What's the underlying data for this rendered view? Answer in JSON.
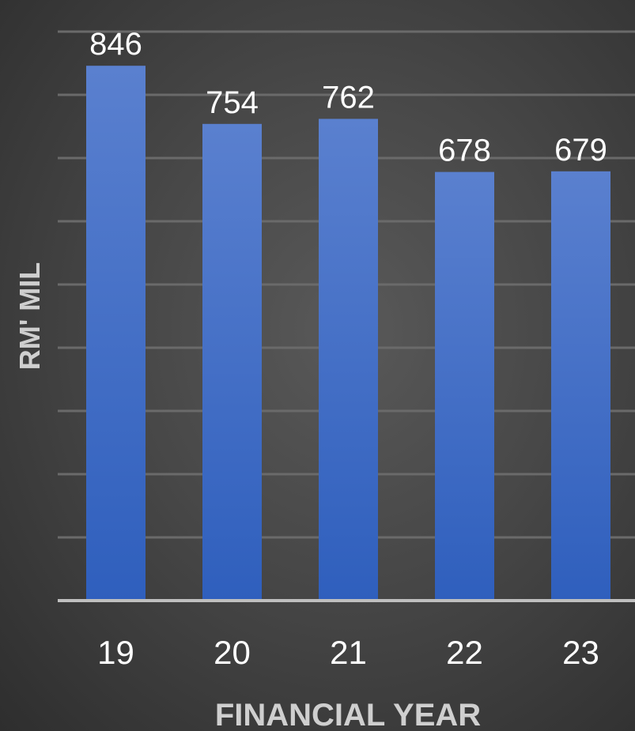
{
  "chart_data": {
    "type": "bar",
    "categories": [
      "19",
      "20",
      "21",
      "22",
      "23"
    ],
    "values": [
      846,
      754,
      762,
      678,
      679
    ],
    "data_labels": [
      "846",
      "754",
      "762",
      "678",
      "679"
    ],
    "xlabel": "FINANCIAL YEAR",
    "ylabel": "RM' MIL",
    "ylim": [
      0,
      900
    ],
    "y_axis_tick_labels_visible": false,
    "grid": true,
    "legend": "none"
  },
  "colors": {
    "bar_top": "#5a80cf",
    "bar_bottom": "#2f5fbd",
    "text": "#ffffff",
    "gridline": "#6a6a6a",
    "baseline": "#bfbfbf"
  }
}
